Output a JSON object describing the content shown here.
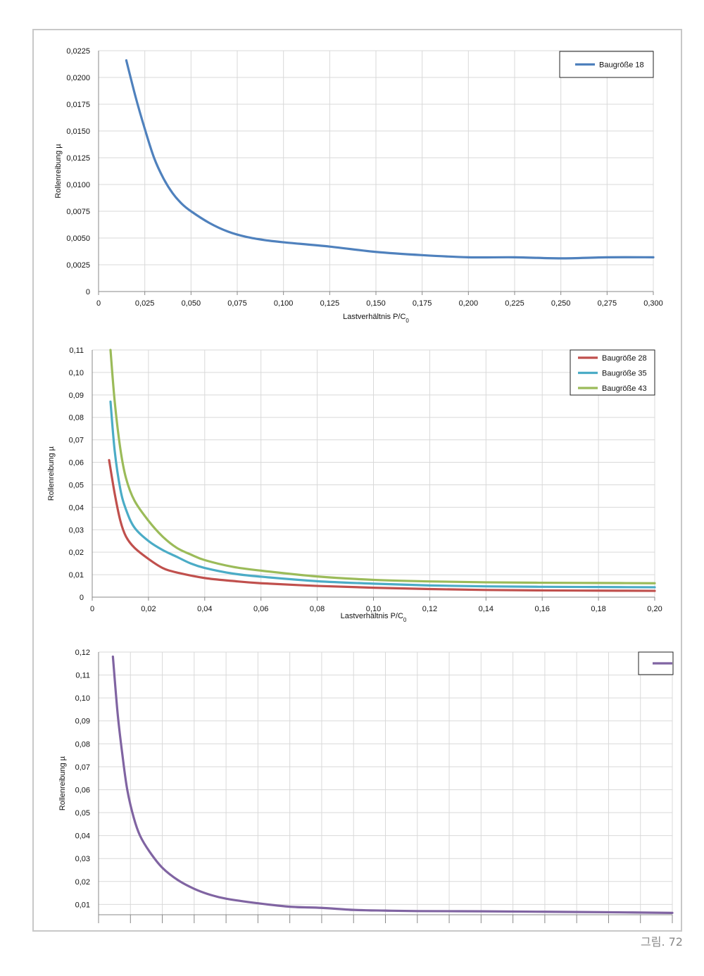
{
  "figure_caption": "그림. 72",
  "chart_data": [
    {
      "type": "line",
      "xlabel": "Lastverhältnis P/C",
      "xlabel_sub": "0",
      "ylabel": "Rollenreibung µ",
      "xlim": [
        0,
        0.3
      ],
      "ylim": [
        0,
        0.0225
      ],
      "x_ticks": [
        0,
        0.025,
        0.05,
        0.075,
        0.1,
        0.125,
        0.15,
        0.175,
        0.2,
        0.225,
        0.25,
        0.275,
        0.3
      ],
      "x_tick_labels": [
        "0",
        "0,025",
        "0,050",
        "0,075",
        "0,100",
        "0,125",
        "0,150",
        "0,175",
        "0,200",
        "0,225",
        "0,250",
        "0,275",
        "0,300"
      ],
      "y_ticks": [
        0,
        0.0025,
        0.005,
        0.0075,
        0.01,
        0.0125,
        0.015,
        0.0175,
        0.02,
        0.0225
      ],
      "y_tick_labels": [
        "0",
        "0,0025",
        "0,0050",
        "0,0075",
        "0,0100",
        "0,0125",
        "0,0150",
        "0,0175",
        "0,0200",
        "0,0225"
      ],
      "grid": true,
      "legend_position": "top-right",
      "series": [
        {
          "name": "Baugröße 18",
          "color": "#4f81bd",
          "x": [
            0.015,
            0.02,
            0.025,
            0.03,
            0.035,
            0.04,
            0.045,
            0.05,
            0.06,
            0.07,
            0.08,
            0.09,
            0.1,
            0.125,
            0.15,
            0.175,
            0.2,
            0.225,
            0.25,
            0.275,
            0.3
          ],
          "y": [
            0.0216,
            0.0182,
            0.0152,
            0.0125,
            0.0106,
            0.0092,
            0.0082,
            0.0075,
            0.0064,
            0.0056,
            0.0051,
            0.0048,
            0.0046,
            0.0042,
            0.0037,
            0.0034,
            0.0032,
            0.0032,
            0.0031,
            0.0032,
            0.0032
          ]
        }
      ]
    },
    {
      "type": "line",
      "xlabel": "Lastverhältnis P/C",
      "xlabel_sub": "0",
      "ylabel": "Rollenreibung µ",
      "xlim": [
        0,
        0.2
      ],
      "ylim": [
        0,
        0.11
      ],
      "x_ticks": [
        0,
        0.02,
        0.04,
        0.06,
        0.08,
        0.1,
        0.12,
        0.14,
        0.16,
        0.18,
        0.2
      ],
      "x_tick_labels": [
        "0",
        "0,02",
        "0,04",
        "0,06",
        "0,08",
        "0,10",
        "0,12",
        "0,14",
        "0,16",
        "0,18",
        "0,20"
      ],
      "y_ticks": [
        0,
        0.01,
        0.02,
        0.03,
        0.04,
        0.05,
        0.06,
        0.07,
        0.08,
        0.09,
        0.1,
        0.11
      ],
      "y_tick_labels": [
        "0",
        "0,01",
        "0,02",
        "0,03",
        "0,04",
        "0,05",
        "0,06",
        "0,07",
        "0,08",
        "0,09",
        "0,10",
        "0,11"
      ],
      "grid": true,
      "legend_position": "top-right",
      "series": [
        {
          "name": "Baugröße 28",
          "color": "#c0504d",
          "x": [
            0.006,
            0.008,
            0.01,
            0.012,
            0.015,
            0.02,
            0.025,
            0.03,
            0.04,
            0.05,
            0.06,
            0.08,
            0.1,
            0.12,
            0.14,
            0.16,
            0.18,
            0.2
          ],
          "y": [
            0.061,
            0.046,
            0.034,
            0.027,
            0.022,
            0.017,
            0.013,
            0.011,
            0.0085,
            0.0072,
            0.0062,
            0.005,
            0.0042,
            0.0036,
            0.0032,
            0.003,
            0.0029,
            0.0028
          ]
        },
        {
          "name": "Baugröße 35",
          "color": "#4bacc6",
          "x": [
            0.0065,
            0.008,
            0.01,
            0.012,
            0.015,
            0.02,
            0.025,
            0.03,
            0.035,
            0.04,
            0.05,
            0.06,
            0.08,
            0.1,
            0.12,
            0.14,
            0.16,
            0.18,
            0.2
          ],
          "y": [
            0.087,
            0.065,
            0.048,
            0.039,
            0.031,
            0.025,
            0.021,
            0.018,
            0.015,
            0.013,
            0.0105,
            0.0091,
            0.0071,
            0.006,
            0.0052,
            0.0048,
            0.0046,
            0.0045,
            0.0044
          ]
        },
        {
          "name": "Baugröße 43",
          "color": "#9bbb59",
          "x": [
            0.0065,
            0.008,
            0.01,
            0.012,
            0.015,
            0.02,
            0.025,
            0.03,
            0.035,
            0.04,
            0.05,
            0.06,
            0.08,
            0.1,
            0.12,
            0.14,
            0.16,
            0.18,
            0.2
          ],
          "y": [
            0.11,
            0.087,
            0.066,
            0.053,
            0.043,
            0.034,
            0.027,
            0.022,
            0.019,
            0.0165,
            0.0135,
            0.0118,
            0.0092,
            0.0077,
            0.007,
            0.0066,
            0.0064,
            0.0063,
            0.0062
          ]
        }
      ]
    },
    {
      "type": "line",
      "xlabel": "",
      "ylabel": "Rollenreibung µ",
      "x_visible_ticks": 19,
      "xlim": [
        0,
        18
      ],
      "ylim": [
        0.0055,
        0.12
      ],
      "y_ticks": [
        0.01,
        0.02,
        0.03,
        0.04,
        0.05,
        0.06,
        0.07,
        0.08,
        0.09,
        0.1,
        0.11,
        0.12
      ],
      "y_tick_labels": [
        "0,01",
        "0,02",
        "0,03",
        "0,04",
        "0,05",
        "0,06",
        "0,07",
        "0,08",
        "0,09",
        "0,10",
        "0,11",
        "0,12"
      ],
      "grid": true,
      "legend_position": "top-right",
      "series": [
        {
          "color": "#8064a2",
          "x": [
            0.45,
            0.6,
            0.75,
            0.9,
            1.1,
            1.3,
            1.6,
            2.0,
            2.5,
            3.0,
            3.5,
            4.0,
            5.0,
            6.0,
            7.0,
            8.0,
            9.0,
            10.0,
            12.0,
            14.0,
            16.0,
            18.0
          ],
          "y": [
            0.118,
            0.093,
            0.075,
            0.06,
            0.048,
            0.04,
            0.033,
            0.026,
            0.0205,
            0.0168,
            0.0142,
            0.0125,
            0.0105,
            0.009,
            0.0085,
            0.0076,
            0.0073,
            0.0071,
            0.007,
            0.0068,
            0.0066,
            0.0063
          ]
        }
      ]
    }
  ]
}
